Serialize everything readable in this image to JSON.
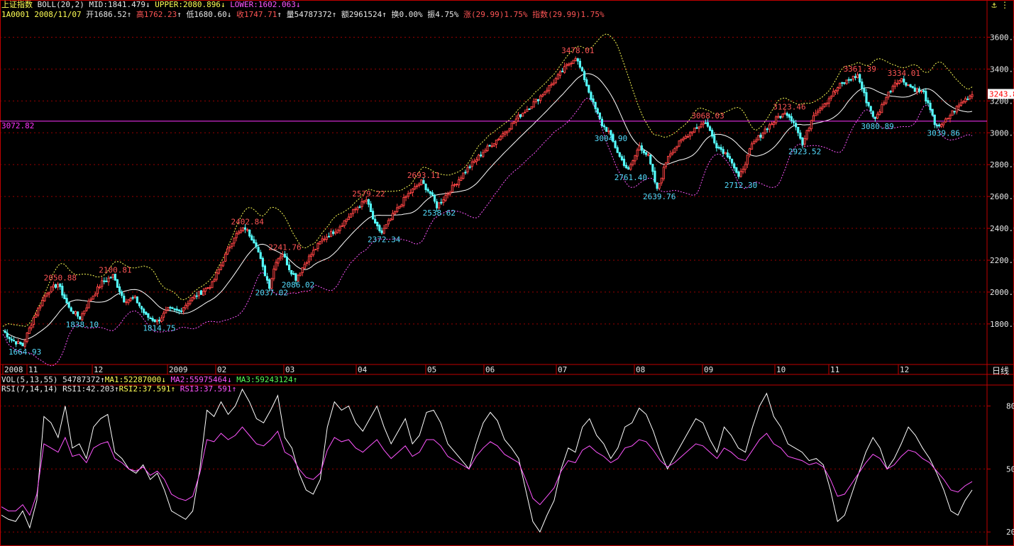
{
  "header": {
    "name": "上证指数",
    "indicator": "BOLL(20,2)",
    "mid": "MID:1841.479",
    "upper": "UPPER:2080.896",
    "lower": "LOWER:1602.063",
    "code_date": "1A0001 2008/11/07",
    "open": "开1686.52",
    "high": "高1762.23",
    "low": "低1680.60",
    "close": "收1747.71",
    "volume": "量54787372",
    "amount": "额2961524",
    "turnover": "换0.00%",
    "amplitude": "振4.75%",
    "change": "涨(29.99)1.75%",
    "index_change": "指数(29.99)1.75%"
  },
  "vol_header": {
    "label": "VOL(5,13,55)",
    "vol": "54787372",
    "ma1": "MA1:52287000",
    "ma2": "MA2:55975464",
    "ma3": "MA3:59243124"
  },
  "rsi_header": {
    "label": "RSI(7,14,14)",
    "rsi1": "RSI1:42.203",
    "rsi2": "RSI2:37.591",
    "rsi3": "RSI3:37.591"
  },
  "controls": {
    "up": "⚓",
    "close": "⋮",
    "period": "日线"
  },
  "colors": {
    "bg": "#000000",
    "up": "#ff4444",
    "down": "#55ffff",
    "mid": "#ffffff",
    "upper": "#ffff55",
    "lower": "#ff55ff",
    "frame": "#c00000",
    "grid": "#990000",
    "hline": "#ff33ff",
    "tick": "#e8e8e8",
    "rsi1": "#ffffff",
    "rsi2": "#ff55ff"
  },
  "chart_data": [
    {
      "type": "candlestick",
      "title": "上证指数 BOLL(20,2)",
      "ylim": [
        1550,
        3700
      ],
      "y_ticks": [
        "3600.00",
        "3400.00",
        "3200.00",
        "3000.00",
        "2800.00",
        "2600.00",
        "2400.00",
        "2200.00",
        "2000.00",
        "1800.00"
      ],
      "x_labels": [
        "2008",
        "11",
        "12",
        "2009",
        "02",
        "03",
        "04",
        "05",
        "06",
        "07",
        "08",
        "09",
        "10",
        "11",
        "12"
      ],
      "grid": true,
      "reference_line": {
        "value": 3072.82,
        "label": "3072.82"
      },
      "last_price_tag": "3243.8",
      "annotations": [
        {
          "text": "1664.93",
          "value": 1664.93,
          "type": "low"
        },
        {
          "text": "2050.88",
          "value": 2050.88,
          "type": "high"
        },
        {
          "text": "1838.10",
          "value": 1838.1,
          "type": "low"
        },
        {
          "text": "2100.81",
          "value": 2100.81,
          "type": "high"
        },
        {
          "text": "1814.75",
          "value": 1814.75,
          "type": "low"
        },
        {
          "text": "2402.84",
          "value": 2402.84,
          "type": "high"
        },
        {
          "text": "2241.76",
          "value": 2241.76,
          "type": "high"
        },
        {
          "text": "2037.02",
          "value": 2037.02,
          "type": "low"
        },
        {
          "text": "2086.02",
          "value": 2086.02,
          "type": "low"
        },
        {
          "text": "2579.22",
          "value": 2579.22,
          "type": "high"
        },
        {
          "text": "2372.34",
          "value": 2372.34,
          "type": "low"
        },
        {
          "text": "2693.11",
          "value": 2693.11,
          "type": "high"
        },
        {
          "text": "2538.62",
          "value": 2538.62,
          "type": "low"
        },
        {
          "text": "3478.01",
          "value": 3478.01,
          "type": "high"
        },
        {
          "text": "3004.90",
          "value": 3004.9,
          "type": "low"
        },
        {
          "text": "2761.40",
          "value": 2761.4,
          "type": "low"
        },
        {
          "text": "2639.76",
          "value": 2639.76,
          "type": "low"
        },
        {
          "text": "3068.03",
          "value": 3068.03,
          "type": "high"
        },
        {
          "text": "2712.30",
          "value": 2712.3,
          "type": "low"
        },
        {
          "text": "3123.46",
          "value": 3123.46,
          "type": "high"
        },
        {
          "text": "2923.52",
          "value": 2923.52,
          "type": "low"
        },
        {
          "text": "3361.39",
          "value": 3361.39,
          "type": "high"
        },
        {
          "text": "3334.01",
          "value": 3334.01,
          "type": "high"
        },
        {
          "text": "3080.89",
          "value": 3080.89,
          "type": "low"
        },
        {
          "text": "3039.86",
          "value": 3039.86,
          "type": "low"
        }
      ],
      "trend_points": [
        [
          0,
          1760
        ],
        [
          4,
          1700
        ],
        [
          9,
          1664.93
        ],
        [
          14,
          1840
        ],
        [
          20,
          2000
        ],
        [
          25,
          2050.88
        ],
        [
          30,
          1900
        ],
        [
          35,
          1838.1
        ],
        [
          40,
          1960
        ],
        [
          45,
          2060
        ],
        [
          50,
          2100.81
        ],
        [
          55,
          1950
        ],
        [
          60,
          1960
        ],
        [
          65,
          1850
        ],
        [
          70,
          1814.75
        ],
        [
          75,
          1890
        ],
        [
          80,
          1880
        ],
        [
          85,
          1950
        ],
        [
          90,
          2000
        ],
        [
          95,
          2050
        ],
        [
          100,
          2200
        ],
        [
          105,
          2350
        ],
        [
          110,
          2402.84
        ],
        [
          115,
          2300
        ],
        [
          118,
          2150
        ],
        [
          121,
          2037.02
        ],
        [
          124,
          2200
        ],
        [
          127,
          2241.76
        ],
        [
          130,
          2150
        ],
        [
          133,
          2086.02
        ],
        [
          138,
          2200
        ],
        [
          145,
          2330
        ],
        [
          152,
          2400
        ],
        [
          160,
          2520
        ],
        [
          165,
          2579.22
        ],
        [
          169,
          2420
        ],
        [
          172,
          2372.34
        ],
        [
          177,
          2480
        ],
        [
          183,
          2600
        ],
        [
          190,
          2693.11
        ],
        [
          194,
          2620
        ],
        [
          197,
          2538.62
        ],
        [
          203,
          2640
        ],
        [
          210,
          2760
        ],
        [
          218,
          2880
        ],
        [
          226,
          2980
        ],
        [
          234,
          3100
        ],
        [
          242,
          3200
        ],
        [
          250,
          3320
        ],
        [
          256,
          3420
        ],
        [
          260,
          3478.01
        ],
        [
          264,
          3340
        ],
        [
          268,
          3180
        ],
        [
          272,
          3050
        ],
        [
          275,
          3004.9
        ],
        [
          280,
          2850
        ],
        [
          284,
          2761.4
        ],
        [
          289,
          2920
        ],
        [
          293,
          2850
        ],
        [
          297,
          2639.76
        ],
        [
          302,
          2860
        ],
        [
          308,
          2950
        ],
        [
          314,
          3030
        ],
        [
          319,
          3068.03
        ],
        [
          324,
          2920
        ],
        [
          330,
          2850
        ],
        [
          334,
          2712.3
        ],
        [
          340,
          2920
        ],
        [
          346,
          3020
        ],
        [
          352,
          3100
        ],
        [
          356,
          3123.46
        ],
        [
          360,
          3050
        ],
        [
          363,
          2923.52
        ],
        [
          368,
          3120
        ],
        [
          374,
          3200
        ],
        [
          380,
          3300
        ],
        [
          385,
          3340
        ],
        [
          388,
          3361.39
        ],
        [
          392,
          3200
        ],
        [
          396,
          3080.89
        ],
        [
          400,
          3200
        ],
        [
          405,
          3320
        ],
        [
          408,
          3334.01
        ],
        [
          413,
          3280
        ],
        [
          418,
          3250
        ],
        [
          423,
          3060
        ],
        [
          426,
          3039.86
        ],
        [
          431,
          3130
        ],
        [
          436,
          3200
        ],
        [
          440,
          3243.8
        ]
      ]
    },
    {
      "type": "line",
      "title": "RSI(7,14,14)",
      "ylim": [
        15,
        90
      ],
      "y_ticks": [
        "80",
        "50",
        "20"
      ],
      "series": [
        {
          "name": "RSI1",
          "color": "#ffffff",
          "values": [
            28,
            26,
            25,
            30,
            22,
            35,
            75,
            72,
            65,
            80,
            60,
            62,
            55,
            70,
            74,
            76,
            58,
            55,
            50,
            48,
            52,
            45,
            48,
            40,
            30,
            28,
            26,
            30,
            50,
            78,
            75,
            82,
            76,
            80,
            88,
            82,
            74,
            72,
            78,
            85,
            65,
            60,
            48,
            40,
            38,
            45,
            70,
            82,
            78,
            80,
            72,
            68,
            74,
            80,
            70,
            62,
            68,
            74,
            62,
            66,
            77,
            78,
            72,
            62,
            58,
            54,
            50,
            62,
            72,
            77,
            73,
            64,
            60,
            55,
            40,
            25,
            20,
            28,
            35,
            50,
            60,
            58,
            70,
            74,
            66,
            62,
            55,
            60,
            70,
            72,
            79,
            76,
            68,
            58,
            50,
            56,
            62,
            68,
            74,
            72,
            64,
            58,
            70,
            66,
            60,
            58,
            70,
            80,
            86,
            75,
            70,
            62,
            60,
            58,
            54,
            55,
            52,
            40,
            25,
            28,
            38,
            48,
            58,
            65,
            60,
            50,
            55,
            62,
            70,
            66,
            60,
            55,
            48,
            40,
            30,
            28,
            35,
            40
          ]
        },
        {
          "name": "RSI2",
          "color": "#ff55ff",
          "values": [
            32,
            30,
            30,
            33,
            28,
            38,
            62,
            60,
            58,
            65,
            56,
            57,
            53,
            60,
            62,
            63,
            55,
            53,
            50,
            49,
            51,
            47,
            49,
            45,
            38,
            36,
            35,
            37,
            48,
            64,
            63,
            67,
            64,
            66,
            70,
            66,
            62,
            61,
            64,
            68,
            58,
            56,
            50,
            46,
            45,
            48,
            59,
            65,
            63,
            64,
            60,
            58,
            61,
            64,
            59,
            55,
            58,
            61,
            56,
            58,
            64,
            64,
            61,
            56,
            54,
            52,
            50,
            56,
            60,
            63,
            61,
            57,
            55,
            53,
            45,
            36,
            33,
            37,
            41,
            49,
            54,
            53,
            59,
            61,
            58,
            56,
            53,
            55,
            60,
            61,
            64,
            63,
            59,
            54,
            51,
            53,
            56,
            59,
            62,
            61,
            58,
            55,
            60,
            58,
            55,
            54,
            59,
            64,
            67,
            62,
            60,
            56,
            55,
            54,
            52,
            53,
            51,
            45,
            37,
            38,
            43,
            48,
            53,
            57,
            55,
            50,
            52,
            56,
            59,
            58,
            55,
            53,
            49,
            45,
            40,
            39,
            42,
            44
          ]
        }
      ]
    }
  ]
}
